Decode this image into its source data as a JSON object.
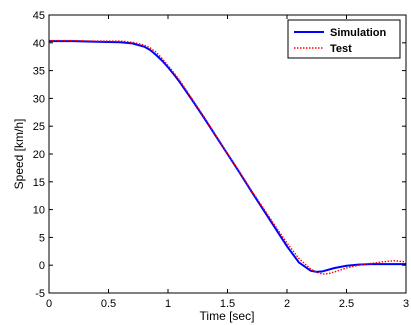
{
  "chart_data": {
    "type": "line",
    "xlabel": "Time [sec]",
    "ylabel": "Speed [km/h]",
    "xlim": [
      0,
      3
    ],
    "ylim": [
      -5,
      45
    ],
    "xticks": [
      0,
      0.5,
      1,
      1.5,
      2,
      2.5,
      3
    ],
    "yticks": [
      -5,
      0,
      5,
      10,
      15,
      20,
      25,
      30,
      35,
      40,
      45
    ],
    "xtick_labels": [
      "0",
      "0.5",
      "1",
      "1.5",
      "2",
      "2.5",
      "3"
    ],
    "ytick_labels": [
      "-5",
      "0",
      "5",
      "10",
      "15",
      "20",
      "25",
      "30",
      "35",
      "40",
      "45"
    ],
    "grid": false,
    "legend_position": "top-right",
    "series": [
      {
        "name": "Simulation",
        "color": "#0000ff",
        "style": "solid",
        "x": [
          0,
          0.2,
          0.4,
          0.6,
          0.7,
          0.8,
          0.85,
          0.9,
          0.95,
          1.0,
          1.05,
          1.1,
          1.2,
          1.3,
          1.4,
          1.5,
          1.6,
          1.7,
          1.8,
          1.9,
          2.0,
          2.1,
          2.2,
          2.25,
          2.3,
          2.4,
          2.5,
          2.6,
          2.7,
          2.8,
          2.9,
          3.0
        ],
        "y": [
          40.3,
          40.3,
          40.2,
          40.1,
          39.9,
          39.3,
          38.7,
          37.8,
          36.8,
          35.6,
          34.3,
          32.9,
          29.8,
          26.6,
          23.3,
          20.0,
          16.7,
          13.3,
          10.0,
          6.7,
          3.4,
          0.5,
          -1.0,
          -1.2,
          -1.1,
          -0.5,
          -0.1,
          0.1,
          0.2,
          0.2,
          0.2,
          0.2
        ]
      },
      {
        "name": "Test",
        "color": "#ff0000",
        "style": "dotted",
        "x": [
          0,
          0.2,
          0.4,
          0.6,
          0.7,
          0.8,
          0.85,
          0.9,
          0.95,
          1.0,
          1.05,
          1.1,
          1.2,
          1.3,
          1.4,
          1.5,
          1.6,
          1.7,
          1.8,
          1.9,
          2.0,
          2.1,
          2.2,
          2.25,
          2.3,
          2.35,
          2.4,
          2.5,
          2.6,
          2.7,
          2.8,
          2.9,
          3.0
        ],
        "y": [
          40.4,
          40.4,
          40.3,
          40.3,
          40.1,
          39.6,
          39.1,
          38.3,
          37.2,
          35.9,
          34.6,
          33.2,
          30.0,
          26.8,
          23.4,
          20.1,
          16.8,
          13.5,
          10.3,
          7.1,
          4.0,
          1.2,
          -0.7,
          -1.3,
          -1.6,
          -1.5,
          -1.2,
          -0.5,
          0.0,
          0.3,
          0.6,
          0.8,
          0.6
        ]
      }
    ]
  }
}
